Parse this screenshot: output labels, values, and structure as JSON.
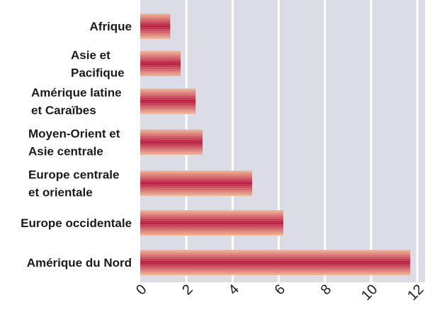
{
  "chart_data": {
    "type": "bar",
    "orientation": "horizontal",
    "categories": [
      [
        "Afrique"
      ],
      [
        "Asie et",
        "Pacifique"
      ],
      [
        "Amérique latine",
        "et Caraïbes"
      ],
      [
        "Moyen-Orient et",
        "Asie centrale"
      ],
      [
        "Europe centrale",
        "et orientale"
      ],
      [
        "Europe occidentale"
      ],
      [
        "Amérique du Nord"
      ]
    ],
    "values": [
      1.3,
      1.75,
      2.4,
      2.7,
      4.85,
      6.2,
      11.7
    ],
    "xlim": [
      0,
      12
    ],
    "xticks": [
      "0",
      "2",
      "4",
      "6",
      "8",
      "10",
      "12"
    ],
    "grid": true,
    "colors": {
      "plot_background": "#dcdce6",
      "gridline": "#ffffff",
      "bar_center": "#b8193f",
      "bar_edge": "#f0b898"
    }
  }
}
